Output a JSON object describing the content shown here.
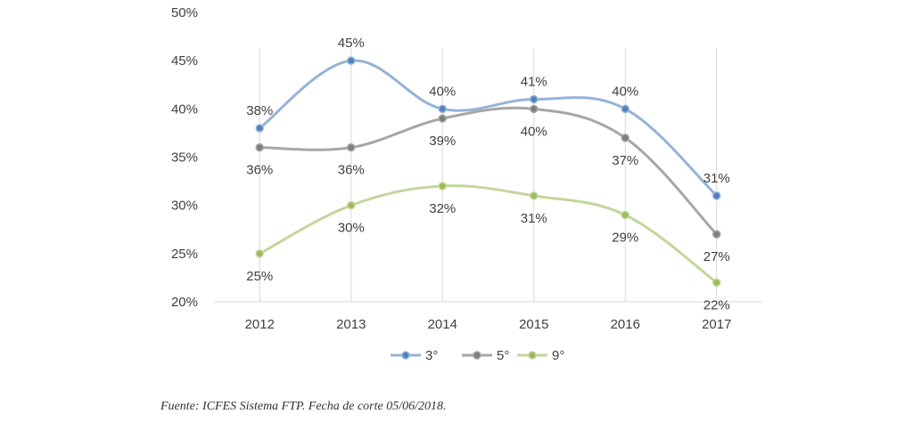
{
  "chart_data": {
    "type": "line",
    "categories": [
      "2012",
      "2013",
      "2014",
      "2015",
      "2016",
      "2017"
    ],
    "y_ticks": [
      "20%",
      "25%",
      "30%",
      "35%",
      "40%",
      "45%",
      "50%"
    ],
    "ylim": [
      20,
      50
    ],
    "grid": "vertical",
    "legend_position": "bottom",
    "series": [
      {
        "name": "3°",
        "values": [
          38,
          45,
          40,
          41,
          40,
          31
        ],
        "labels": [
          "38%",
          "45%",
          "40%",
          "41%",
          "40%",
          "31%"
        ],
        "color": "#95b3d7",
        "marker": "#4f81bd"
      },
      {
        "name": "5°",
        "values": [
          36,
          36,
          39,
          40,
          37,
          27
        ],
        "labels": [
          "36%",
          "36%",
          "39%",
          "40%",
          "37%",
          "27%"
        ],
        "color": "#a6a6a6",
        "marker": "#7f7f7f"
      },
      {
        "name": "9°",
        "values": [
          25,
          30,
          32,
          31,
          29,
          22
        ],
        "labels": [
          "25%",
          "30%",
          "32%",
          "31%",
          "29%",
          "22%"
        ],
        "color": "#c3d69b",
        "marker": "#9bbb59"
      }
    ]
  },
  "source": "Fuente: ICFES Sistema FTP. Fecha de corte 05/06/2018."
}
